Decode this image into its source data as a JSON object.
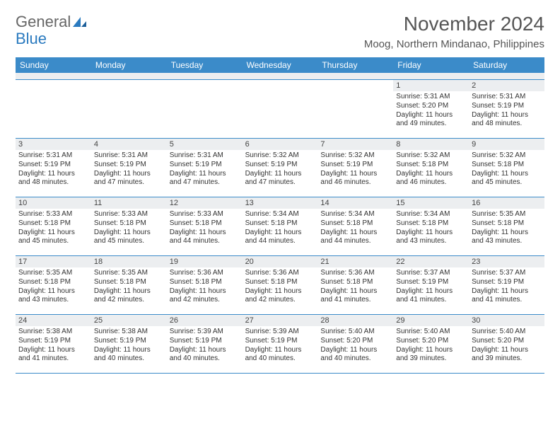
{
  "logo": {
    "text1": "General",
    "text2": "Blue"
  },
  "header": {
    "title": "November 2024",
    "location": "Moog, Northern Mindanao, Philippines"
  },
  "colors": {
    "header_bg": "#3b8bc9",
    "header_fg": "#ffffff",
    "daynum_bg": "#eceef0",
    "border": "#3b8bc9",
    "text": "#333333",
    "title": "#555555"
  },
  "weekdays": [
    "Sunday",
    "Monday",
    "Tuesday",
    "Wednesday",
    "Thursday",
    "Friday",
    "Saturday"
  ],
  "weeks": [
    [
      null,
      null,
      null,
      null,
      null,
      {
        "n": "1",
        "sunrise": "Sunrise: 5:31 AM",
        "sunset": "Sunset: 5:20 PM",
        "daylight": "Daylight: 11 hours and 49 minutes."
      },
      {
        "n": "2",
        "sunrise": "Sunrise: 5:31 AM",
        "sunset": "Sunset: 5:19 PM",
        "daylight": "Daylight: 11 hours and 48 minutes."
      }
    ],
    [
      {
        "n": "3",
        "sunrise": "Sunrise: 5:31 AM",
        "sunset": "Sunset: 5:19 PM",
        "daylight": "Daylight: 11 hours and 48 minutes."
      },
      {
        "n": "4",
        "sunrise": "Sunrise: 5:31 AM",
        "sunset": "Sunset: 5:19 PM",
        "daylight": "Daylight: 11 hours and 47 minutes."
      },
      {
        "n": "5",
        "sunrise": "Sunrise: 5:31 AM",
        "sunset": "Sunset: 5:19 PM",
        "daylight": "Daylight: 11 hours and 47 minutes."
      },
      {
        "n": "6",
        "sunrise": "Sunrise: 5:32 AM",
        "sunset": "Sunset: 5:19 PM",
        "daylight": "Daylight: 11 hours and 47 minutes."
      },
      {
        "n": "7",
        "sunrise": "Sunrise: 5:32 AM",
        "sunset": "Sunset: 5:19 PM",
        "daylight": "Daylight: 11 hours and 46 minutes."
      },
      {
        "n": "8",
        "sunrise": "Sunrise: 5:32 AM",
        "sunset": "Sunset: 5:18 PM",
        "daylight": "Daylight: 11 hours and 46 minutes."
      },
      {
        "n": "9",
        "sunrise": "Sunrise: 5:32 AM",
        "sunset": "Sunset: 5:18 PM",
        "daylight": "Daylight: 11 hours and 45 minutes."
      }
    ],
    [
      {
        "n": "10",
        "sunrise": "Sunrise: 5:33 AM",
        "sunset": "Sunset: 5:18 PM",
        "daylight": "Daylight: 11 hours and 45 minutes."
      },
      {
        "n": "11",
        "sunrise": "Sunrise: 5:33 AM",
        "sunset": "Sunset: 5:18 PM",
        "daylight": "Daylight: 11 hours and 45 minutes."
      },
      {
        "n": "12",
        "sunrise": "Sunrise: 5:33 AM",
        "sunset": "Sunset: 5:18 PM",
        "daylight": "Daylight: 11 hours and 44 minutes."
      },
      {
        "n": "13",
        "sunrise": "Sunrise: 5:34 AM",
        "sunset": "Sunset: 5:18 PM",
        "daylight": "Daylight: 11 hours and 44 minutes."
      },
      {
        "n": "14",
        "sunrise": "Sunrise: 5:34 AM",
        "sunset": "Sunset: 5:18 PM",
        "daylight": "Daylight: 11 hours and 44 minutes."
      },
      {
        "n": "15",
        "sunrise": "Sunrise: 5:34 AM",
        "sunset": "Sunset: 5:18 PM",
        "daylight": "Daylight: 11 hours and 43 minutes."
      },
      {
        "n": "16",
        "sunrise": "Sunrise: 5:35 AM",
        "sunset": "Sunset: 5:18 PM",
        "daylight": "Daylight: 11 hours and 43 minutes."
      }
    ],
    [
      {
        "n": "17",
        "sunrise": "Sunrise: 5:35 AM",
        "sunset": "Sunset: 5:18 PM",
        "daylight": "Daylight: 11 hours and 43 minutes."
      },
      {
        "n": "18",
        "sunrise": "Sunrise: 5:35 AM",
        "sunset": "Sunset: 5:18 PM",
        "daylight": "Daylight: 11 hours and 42 minutes."
      },
      {
        "n": "19",
        "sunrise": "Sunrise: 5:36 AM",
        "sunset": "Sunset: 5:18 PM",
        "daylight": "Daylight: 11 hours and 42 minutes."
      },
      {
        "n": "20",
        "sunrise": "Sunrise: 5:36 AM",
        "sunset": "Sunset: 5:18 PM",
        "daylight": "Daylight: 11 hours and 42 minutes."
      },
      {
        "n": "21",
        "sunrise": "Sunrise: 5:36 AM",
        "sunset": "Sunset: 5:18 PM",
        "daylight": "Daylight: 11 hours and 41 minutes."
      },
      {
        "n": "22",
        "sunrise": "Sunrise: 5:37 AM",
        "sunset": "Sunset: 5:19 PM",
        "daylight": "Daylight: 11 hours and 41 minutes."
      },
      {
        "n": "23",
        "sunrise": "Sunrise: 5:37 AM",
        "sunset": "Sunset: 5:19 PM",
        "daylight": "Daylight: 11 hours and 41 minutes."
      }
    ],
    [
      {
        "n": "24",
        "sunrise": "Sunrise: 5:38 AM",
        "sunset": "Sunset: 5:19 PM",
        "daylight": "Daylight: 11 hours and 41 minutes."
      },
      {
        "n": "25",
        "sunrise": "Sunrise: 5:38 AM",
        "sunset": "Sunset: 5:19 PM",
        "daylight": "Daylight: 11 hours and 40 minutes."
      },
      {
        "n": "26",
        "sunrise": "Sunrise: 5:39 AM",
        "sunset": "Sunset: 5:19 PM",
        "daylight": "Daylight: 11 hours and 40 minutes."
      },
      {
        "n": "27",
        "sunrise": "Sunrise: 5:39 AM",
        "sunset": "Sunset: 5:19 PM",
        "daylight": "Daylight: 11 hours and 40 minutes."
      },
      {
        "n": "28",
        "sunrise": "Sunrise: 5:40 AM",
        "sunset": "Sunset: 5:20 PM",
        "daylight": "Daylight: 11 hours and 40 minutes."
      },
      {
        "n": "29",
        "sunrise": "Sunrise: 5:40 AM",
        "sunset": "Sunset: 5:20 PM",
        "daylight": "Daylight: 11 hours and 39 minutes."
      },
      {
        "n": "30",
        "sunrise": "Sunrise: 5:40 AM",
        "sunset": "Sunset: 5:20 PM",
        "daylight": "Daylight: 11 hours and 39 minutes."
      }
    ]
  ]
}
